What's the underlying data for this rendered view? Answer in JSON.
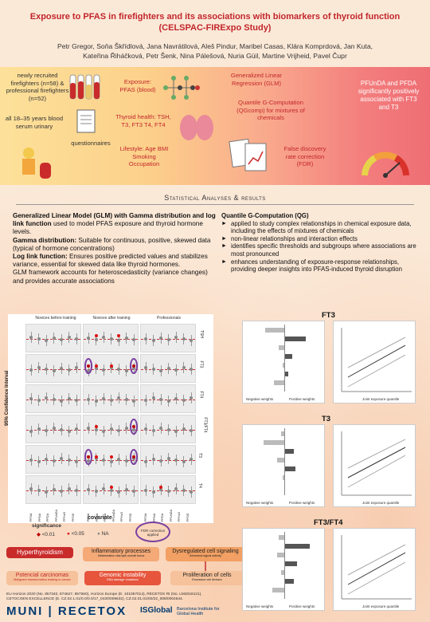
{
  "header": {
    "title_line1": "Exposure to PFAS in firefighters and its associations with biomarkers of thyroid function",
    "title_line2": "(CELSPAC-FIRExpo Study)",
    "authors_line1": "Petr Gregor, Soňa Škřídlová, Jana Navrátilová, Aleš Pindur, Maribel Casas, Klára Komprdová, Jan Kuta,",
    "authors_line2": "Kateřina Řiháčková, Petr Šenk, Nina Pálešová, Nuria Güil, Martine Vrijheid, Pavel Čupr"
  },
  "band": {
    "participants": "newly recruited firefighters (n=58) & professional firefighters (n=52)",
    "age": "all 18–35 years blood serum urinary",
    "questionnaires": "questionnaires",
    "exposure": "Exposure: PFAS (blood)",
    "thyroid": "Thyroid health: TSH, T3, FT3 T4, FT4",
    "lifestyle": "Lifestyle: Age BMI Smoking Occupation",
    "glm": "Generalized Linear Regression (GLM)",
    "qgcomp": "Quantile G-Computation (QGcomp) for mixtures of chemicals",
    "fdr": "False discovery rate correction (FDR)",
    "result": "PFUnDA and PFDA significantly positively associated with FT3 and T3"
  },
  "section_title": "Statistical Analyses & results",
  "glm_text": {
    "p1_bold": "Generalized Linear Model (GLM) with Gamma distribution and log link function",
    "p1_rest": " used to model PFAS exposure and thyroid hormone levels.",
    "p2_bold": "Gamma distribution:",
    "p2_rest": " Suitable for continuous, positive, skewed data (typical of hormone concentrations)",
    "p3_bold": "Log link function:",
    "p3_rest": " Ensures positive predicted values and stabilizes variance, essential for skewed data like thyroid hormones.",
    "p4": "GLM framework accounts for heteroscedasticity (variance changes) and provides accurate associations"
  },
  "qg_text": {
    "heading": "Quantile G-Computation (QG)",
    "bullets": [
      "applied to study complex relationships in chemical exposure data, including the effects of mixtures of chemicals",
      "non-linear relationships and interaction effects",
      "identifies specific thresholds and subgroups where associations are most pronounced",
      "enhances understanding of exposure-response relationships, providing deeper insights into PFAS-induced thyroid disruption"
    ]
  },
  "forest": {
    "groups": [
      "Novices before training",
      "Novices after training",
      "Professionals"
    ],
    "outcomes": [
      "TSH",
      "FT3",
      "FT4",
      "FT3/FT4",
      "T3",
      "T4"
    ],
    "ylabel": "95% Confidence Interval",
    "xlabel": "covariate",
    "covariates": [
      "PFOA",
      "PFNA",
      "PFDA",
      "PFUnDA",
      "PFHxS",
      "PFOS"
    ]
  },
  "legend": {
    "title": "significance",
    "items": [
      "<0.01",
      "<0.05",
      "NA"
    ],
    "fdr_label": "FDR correction applied"
  },
  "qg_panels": [
    {
      "title": "FT3",
      "neg_label": "Negative weights",
      "pos_label": "Positive weights",
      "xlab": "Joint exposure quantile"
    },
    {
      "title": "T3",
      "neg_label": "Negative weights",
      "pos_label": "Positive weights",
      "xlab": "Joint exposure quantile"
    },
    {
      "title": "FT3/FT4",
      "neg_label": "Negative weights",
      "pos_label": "Positive weights",
      "xlab": "Joint exposure quantile"
    }
  ],
  "flow": {
    "hyper": "Hyperthyroidism",
    "inflam": "Inflammatory processes",
    "inflam_sub": "Inflammation disrupts overall focus",
    "dysreg": "Dysregulated cell signaling",
    "dysreg_sub": "Abnormal signal activity",
    "genomic": "Genomic instability",
    "genomic_sub": "DNA damage mutations",
    "prolif": "Proliferation of cells",
    "prolif_sub": "Excessive cell division",
    "carcin": "Potencial carcinomas",
    "carcin_sub": "Malignant transformation leading to cancer"
  },
  "funding": {
    "line1": "EU Horizon 2020 (No. 857340, 874627, 857560), Horizon Europe (E. 101057014), RECETOX RI (No. LM2018121),",
    "line2": "CETOCOEN EXCELLENCE (E. CZ.02.1.01/0.0/0.0/17_043/0009632), CZ.02.01.01/00/22_008/0004644."
  },
  "footer": {
    "muni": "MUNI | RECETOX",
    "isglobal": "ISGlobal",
    "isglobal_sub": "Barcelona Institute for Global Health"
  },
  "colors": {
    "title_red": "#c2262b",
    "purple": "#7a3fa0",
    "dark_red": "#b00000"
  }
}
